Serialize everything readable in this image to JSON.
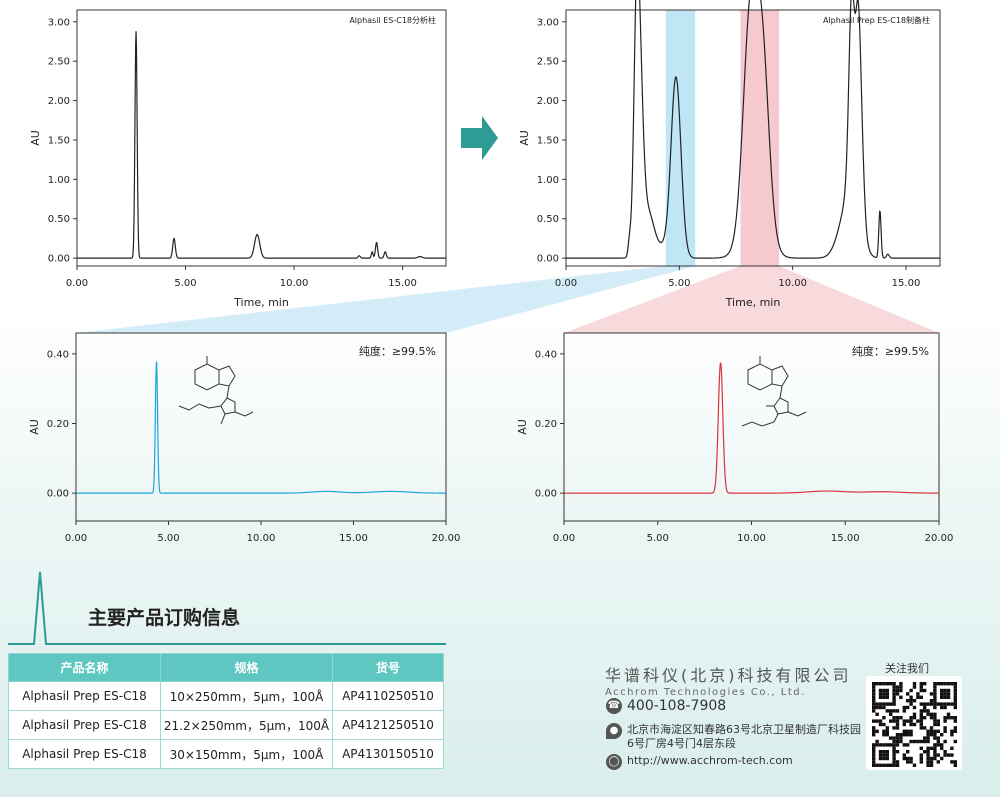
{
  "chart_data": [
    {
      "id": "analytical",
      "type": "line",
      "title": "Alphasil ES-C18分析柱",
      "xlabel": "Time, min",
      "ylabel": "AU",
      "xlim": [
        0,
        17
      ],
      "ylim": [
        -0.1,
        3.15
      ],
      "xticks": [
        "0.00",
        "5.00",
        "10.00",
        "15.00"
      ],
      "yticks": [
        "0.00",
        "0.50",
        "1.00",
        "1.50",
        "2.00",
        "2.50",
        "3.00"
      ],
      "peaks": [
        [
          2.72,
          2.88,
          0.05
        ],
        [
          4.47,
          0.25,
          0.06
        ],
        [
          8.3,
          0.3,
          0.12
        ],
        [
          13.0,
          0.03,
          0.05
        ],
        [
          13.8,
          0.2,
          0.05
        ],
        [
          13.6,
          0.08,
          0.04
        ],
        [
          14.2,
          0.08,
          0.05
        ],
        [
          15.8,
          0.02,
          0.1
        ]
      ],
      "series": [
        {
          "color": "#222222"
        }
      ]
    },
    {
      "id": "preparative",
      "type": "line",
      "title": "Alphasil Prep ES-C18制备柱",
      "xlabel": "Time, min",
      "ylabel": "AU",
      "xlim": [
        0,
        16.5
      ],
      "ylim": [
        -0.1,
        3.15
      ],
      "xticks": [
        "0.00",
        "5.00",
        "10.00",
        "15.00"
      ],
      "yticks": [
        "0.00",
        "0.50",
        "1.00",
        "1.50",
        "2.00",
        "2.50",
        "3.00"
      ],
      "highlights": [
        {
          "x": [
            4.4,
            5.7
          ],
          "color": "#bfe6f5"
        },
        {
          "x": [
            7.7,
            9.4
          ],
          "color": "#f6c9ce"
        }
      ],
      "peaks": [
        [
          2.8,
          0.18,
          0.06
        ],
        [
          3.1,
          2.2,
          0.12
        ],
        [
          3.25,
          2.0,
          0.15
        ],
        [
          3.6,
          0.6,
          0.3
        ],
        [
          4.3,
          0.1,
          0.2
        ],
        [
          4.85,
          2.3,
          0.22
        ],
        [
          8.1,
          2.3,
          0.3
        ],
        [
          8.65,
          2.1,
          0.3
        ],
        [
          8.35,
          0.7,
          0.5
        ],
        [
          12.3,
          0.45,
          0.35
        ],
        [
          12.6,
          2.2,
          0.12
        ],
        [
          12.9,
          2.2,
          0.12
        ],
        [
          12.75,
          0.9,
          0.3
        ],
        [
          13.1,
          0.4,
          0.1
        ],
        [
          13.85,
          0.6,
          0.05
        ],
        [
          14.2,
          0.05,
          0.06
        ]
      ],
      "series": [
        {
          "color": "#222222"
        }
      ]
    },
    {
      "id": "fraction1",
      "type": "line",
      "annotation": "纯度：≥99.5%",
      "ylabel": "AU",
      "xlim": [
        0,
        20
      ],
      "ylim": [
        -0.08,
        0.46
      ],
      "xticks": [
        "0.00",
        "5.00",
        "10.00",
        "15.00",
        "20.00"
      ],
      "yticks": [
        "0.00",
        "0.20",
        "0.40"
      ],
      "peaks": [
        [
          4.35,
          0.38,
          0.06
        ],
        [
          13.5,
          0.005,
          0.8
        ],
        [
          17.0,
          0.005,
          1.0
        ]
      ],
      "series": [
        {
          "color": "#1ea6dc"
        }
      ]
    },
    {
      "id": "fraction2",
      "type": "line",
      "annotation": "纯度：≥99.5%",
      "ylabel": "AU",
      "xlim": [
        0,
        20
      ],
      "ylim": [
        -0.08,
        0.46
      ],
      "xticks": [
        "0.00",
        "5.00",
        "10.00",
        "15.00",
        "20.00"
      ],
      "yticks": [
        "0.00",
        "0.20",
        "0.40"
      ],
      "peaks": [
        [
          8.35,
          0.375,
          0.12
        ],
        [
          14.0,
          0.006,
          1.0
        ],
        [
          17.0,
          0.004,
          1.0
        ]
      ],
      "series": [
        {
          "color": "#d9333f"
        }
      ]
    }
  ],
  "orders": {
    "title": "主要产品订购信息",
    "headers": [
      "产品名称",
      "规格",
      "货号"
    ],
    "rows": [
      [
        "Alphasil Prep ES-C18",
        "10×250mm，5μm，100Å",
        "AP4110250510"
      ],
      [
        "Alphasil Prep ES-C18",
        "21.2×250mm，5μm，100Å",
        "AP4121250510"
      ],
      [
        "Alphasil Prep ES-C18",
        "30×150mm，5μm，100Å",
        "AP4130150510"
      ]
    ]
  },
  "company": {
    "name_cn": "华谱科仪(北京)科技有限公司",
    "name_en": "Acchrom Technologies Co., Ltd.",
    "phone": "400-108-7908",
    "address_line1": "北京市海淀区知春路63号北京卫星制造厂科技园",
    "address_line2": "6号厂房4号门4层东段",
    "website": "http://www.acchrom-tech.com",
    "qr_label": "关注我们",
    "phone_icon": "phone-icon",
    "location_icon": "location-icon",
    "web_icon": "globe-icon",
    "accent": "#2a9a93"
  }
}
